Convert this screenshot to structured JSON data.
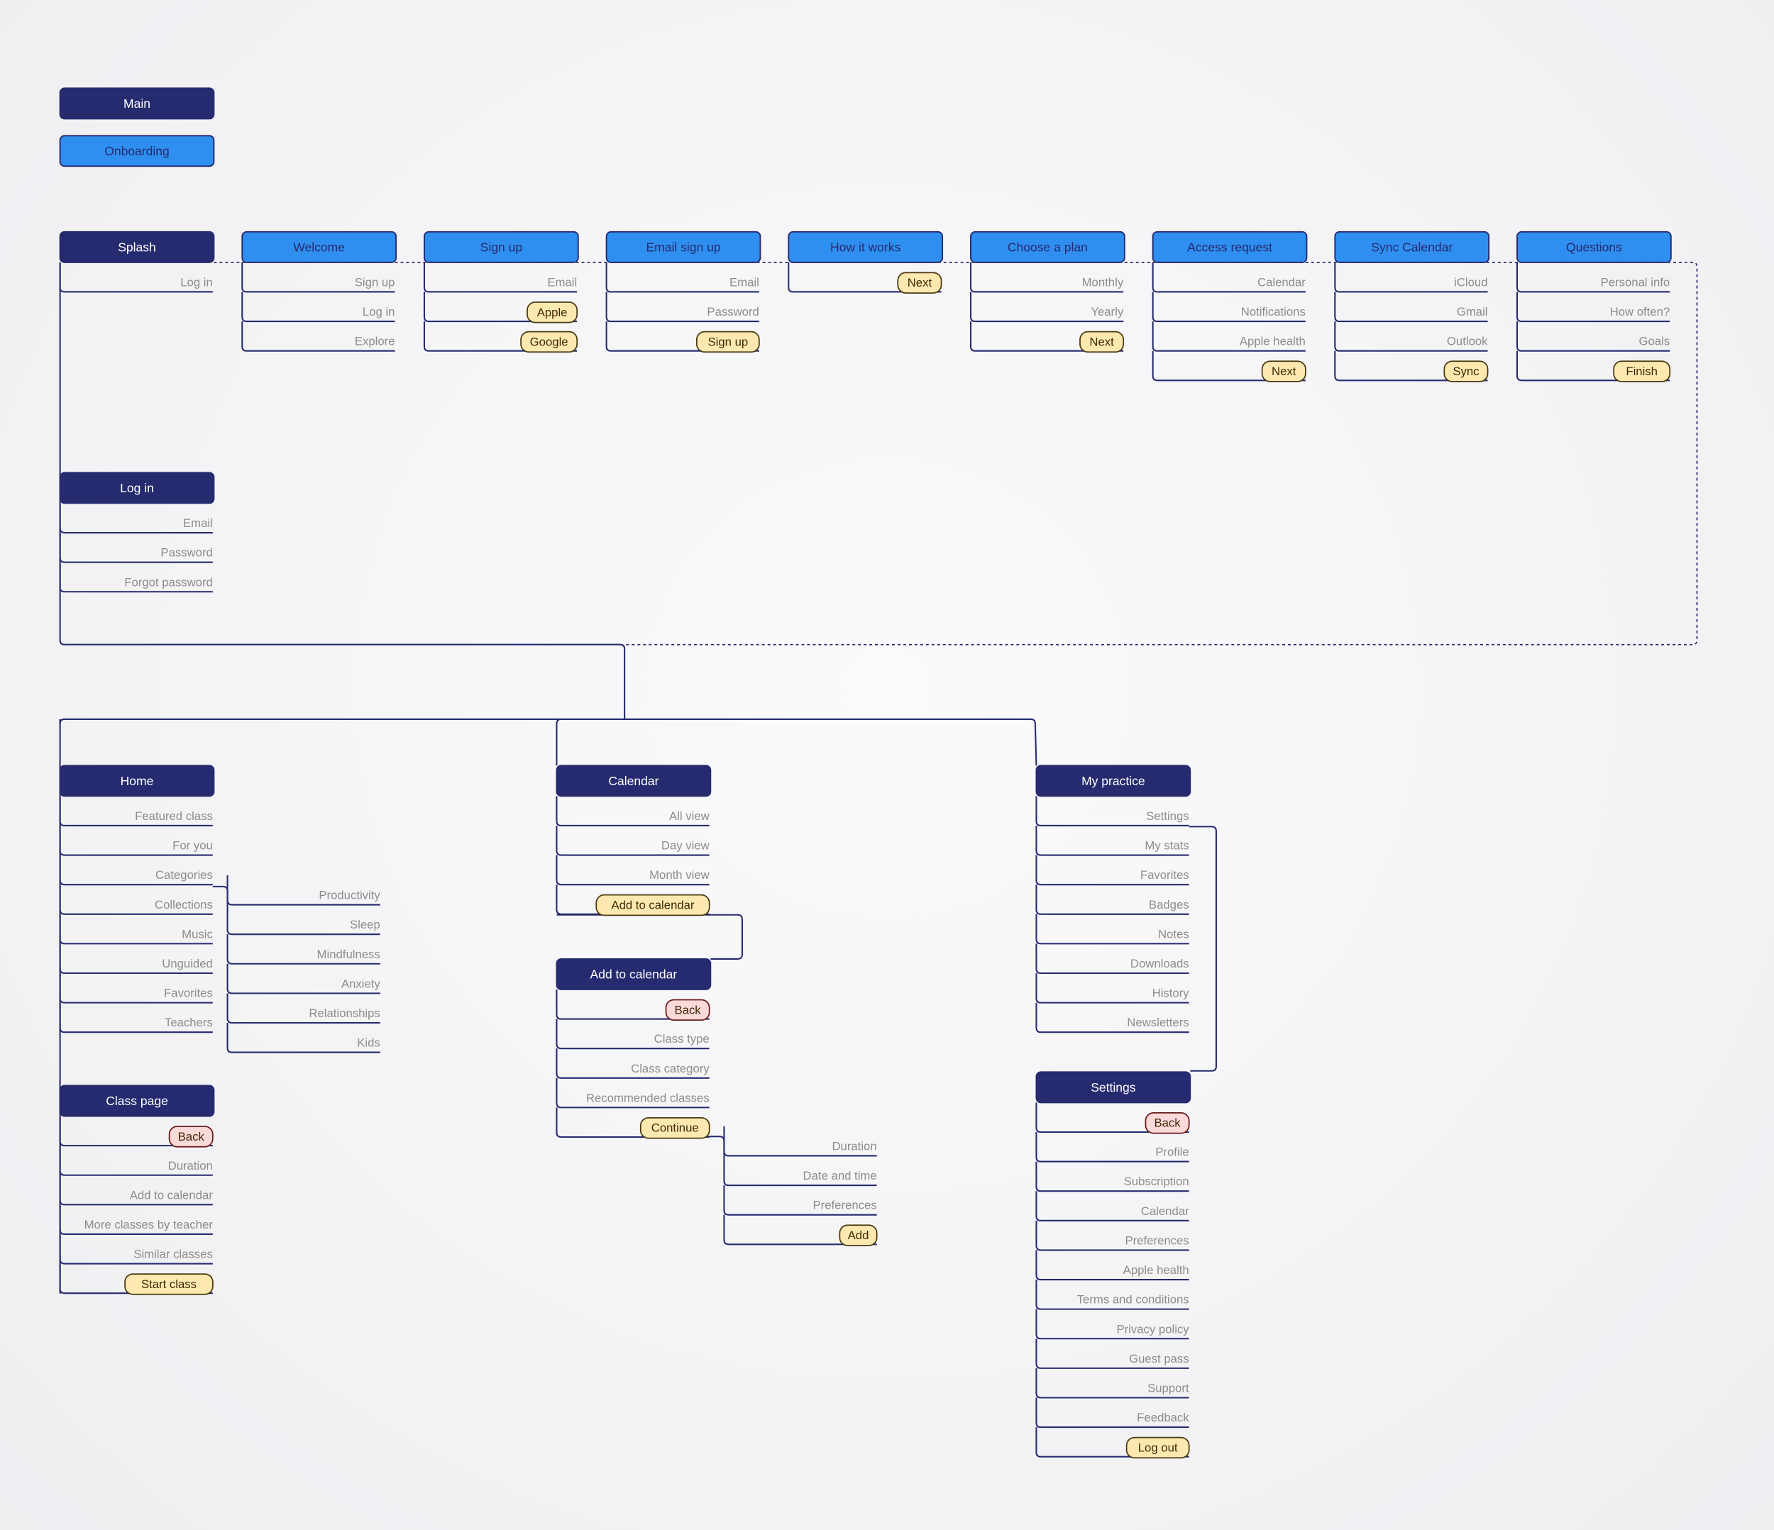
{
  "colors": {
    "main": "#262a6e",
    "onboarding": "#2f8ff0",
    "primary_button": "#fde9b0",
    "back_button": "#fbd9d9",
    "item_text": "#8c8c8c"
  },
  "legend": [
    {
      "label": "Main",
      "type": "main"
    },
    {
      "label": "Onboarding",
      "type": "onboarding"
    }
  ],
  "screens": [
    {
      "id": "splash",
      "title": "Splash",
      "type": "main",
      "items": [
        {
          "label": "Log in"
        }
      ]
    },
    {
      "id": "welcome",
      "title": "Welcome",
      "type": "onboarding",
      "items": [
        {
          "label": "Sign up"
        },
        {
          "label": "Log in"
        },
        {
          "label": "Explore"
        }
      ]
    },
    {
      "id": "signup",
      "title": "Sign up",
      "type": "onboarding",
      "items": [
        {
          "label": "Email"
        },
        {
          "label": "Apple",
          "style": "primary"
        },
        {
          "label": "Google",
          "style": "primary"
        }
      ]
    },
    {
      "id": "emailsignup",
      "title": "Email sign up",
      "type": "onboarding",
      "items": [
        {
          "label": "Email"
        },
        {
          "label": "Password"
        },
        {
          "label": "Sign up",
          "style": "primary"
        }
      ]
    },
    {
      "id": "howitworks",
      "title": "How it works",
      "type": "onboarding",
      "items": [
        {
          "label": "Next",
          "style": "primary"
        }
      ]
    },
    {
      "id": "plan",
      "title": "Choose a plan",
      "type": "onboarding",
      "items": [
        {
          "label": "Monthly"
        },
        {
          "label": "Yearly"
        },
        {
          "label": "Next",
          "style": "primary"
        }
      ]
    },
    {
      "id": "access",
      "title": "Access request",
      "type": "onboarding",
      "items": [
        {
          "label": "Calendar"
        },
        {
          "label": "Notifications"
        },
        {
          "label": "Apple health"
        },
        {
          "label": "Next",
          "style": "primary"
        }
      ]
    },
    {
      "id": "sync",
      "title": "Sync Calendar",
      "type": "onboarding",
      "items": [
        {
          "label": "iCloud"
        },
        {
          "label": "Gmail"
        },
        {
          "label": "Outlook"
        },
        {
          "label": "Sync",
          "style": "primary"
        }
      ]
    },
    {
      "id": "questions",
      "title": "Questions",
      "type": "onboarding",
      "items": [
        {
          "label": "Personal info"
        },
        {
          "label": "How often?"
        },
        {
          "label": "Goals"
        },
        {
          "label": "Finish",
          "style": "primary"
        }
      ]
    },
    {
      "id": "login",
      "title": "Log in",
      "type": "main",
      "items": [
        {
          "label": "Email"
        },
        {
          "label": "Password"
        },
        {
          "label": "Forgot password"
        }
      ]
    },
    {
      "id": "home",
      "title": "Home",
      "type": "main",
      "items": [
        {
          "label": "Featured class"
        },
        {
          "label": "For you"
        },
        {
          "label": "Categories"
        },
        {
          "label": "Collections"
        },
        {
          "label": "Music"
        },
        {
          "label": "Unguided"
        },
        {
          "label": "Favorites"
        },
        {
          "label": "Teachers"
        }
      ]
    },
    {
      "id": "categories",
      "title": "",
      "type": "sub",
      "items": [
        {
          "label": "Productivity"
        },
        {
          "label": "Sleep"
        },
        {
          "label": "Mindfulness"
        },
        {
          "label": "Anxiety"
        },
        {
          "label": "Relationships"
        },
        {
          "label": "Kids"
        }
      ]
    },
    {
      "id": "classpage",
      "title": "Class page",
      "type": "main",
      "items": [
        {
          "label": "Back",
          "style": "back"
        },
        {
          "label": "Duration"
        },
        {
          "label": "Add to calendar"
        },
        {
          "label": "More classes by teacher"
        },
        {
          "label": "Similar classes"
        },
        {
          "label": "Start class",
          "style": "primary"
        }
      ]
    },
    {
      "id": "calendar",
      "title": "Calendar",
      "type": "main",
      "items": [
        {
          "label": "All view"
        },
        {
          "label": "Day view"
        },
        {
          "label": "Month view"
        },
        {
          "label": "Add to calendar",
          "style": "primary"
        }
      ]
    },
    {
      "id": "addcal",
      "title": "Add to calendar",
      "type": "main",
      "items": [
        {
          "label": "Back",
          "style": "back"
        },
        {
          "label": "Class type"
        },
        {
          "label": "Class category"
        },
        {
          "label": "Recommended classes"
        },
        {
          "label": "Continue",
          "style": "primary"
        }
      ]
    },
    {
      "id": "addcalsub",
      "title": "",
      "type": "sub",
      "items": [
        {
          "label": "Duration"
        },
        {
          "label": "Date and time"
        },
        {
          "label": "Preferences"
        },
        {
          "label": "Add",
          "style": "primary"
        }
      ]
    },
    {
      "id": "practice",
      "title": "My practice",
      "type": "main",
      "items": [
        {
          "label": "Settings"
        },
        {
          "label": "My stats"
        },
        {
          "label": "Favorites"
        },
        {
          "label": "Badges"
        },
        {
          "label": "Notes"
        },
        {
          "label": "Downloads"
        },
        {
          "label": "History"
        },
        {
          "label": "Newsletters"
        }
      ]
    },
    {
      "id": "settings",
      "title": "Settings",
      "type": "main",
      "items": [
        {
          "label": "Back",
          "style": "back"
        },
        {
          "label": "Profile"
        },
        {
          "label": "Subscription"
        },
        {
          "label": "Calendar"
        },
        {
          "label": "Preferences"
        },
        {
          "label": "Apple health"
        },
        {
          "label": "Terms and conditions"
        },
        {
          "label": "Privacy policy"
        },
        {
          "label": "Guest pass"
        },
        {
          "label": "Support"
        },
        {
          "label": "Feedback"
        },
        {
          "label": "Log out",
          "style": "primary"
        }
      ]
    }
  ]
}
